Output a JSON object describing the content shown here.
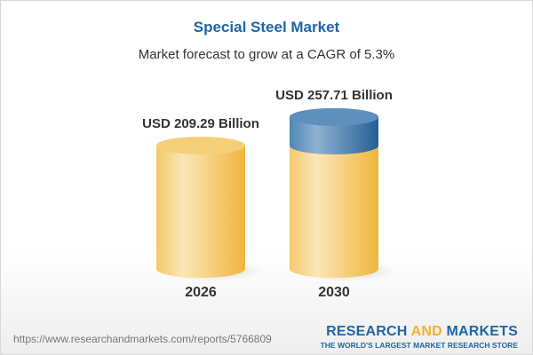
{
  "chart_data": {
    "type": "bar",
    "style": "3d-cylinder",
    "title": "Special Steel Market",
    "subtitle": "Market forecast to grow at a CAGR of 5.3%",
    "categories": [
      "2026",
      "2030"
    ],
    "values": [
      209.29,
      257.71
    ],
    "value_labels": [
      "USD 209.29 Billion",
      "USD 257.71 Billion"
    ],
    "unit": "USD Billion",
    "colors": {
      "base": "#f2c14e",
      "growth": "#3f7cb0",
      "title": "#1f66a5"
    }
  },
  "footer": {
    "url": "https://www.researchandmarkets.com/reports/5766809",
    "logo_part1": "RESEARCH ",
    "logo_part2": "AND",
    "logo_part3": " MARKETS",
    "tagline": "THE WORLD'S LARGEST MARKET RESEARCH STORE"
  }
}
